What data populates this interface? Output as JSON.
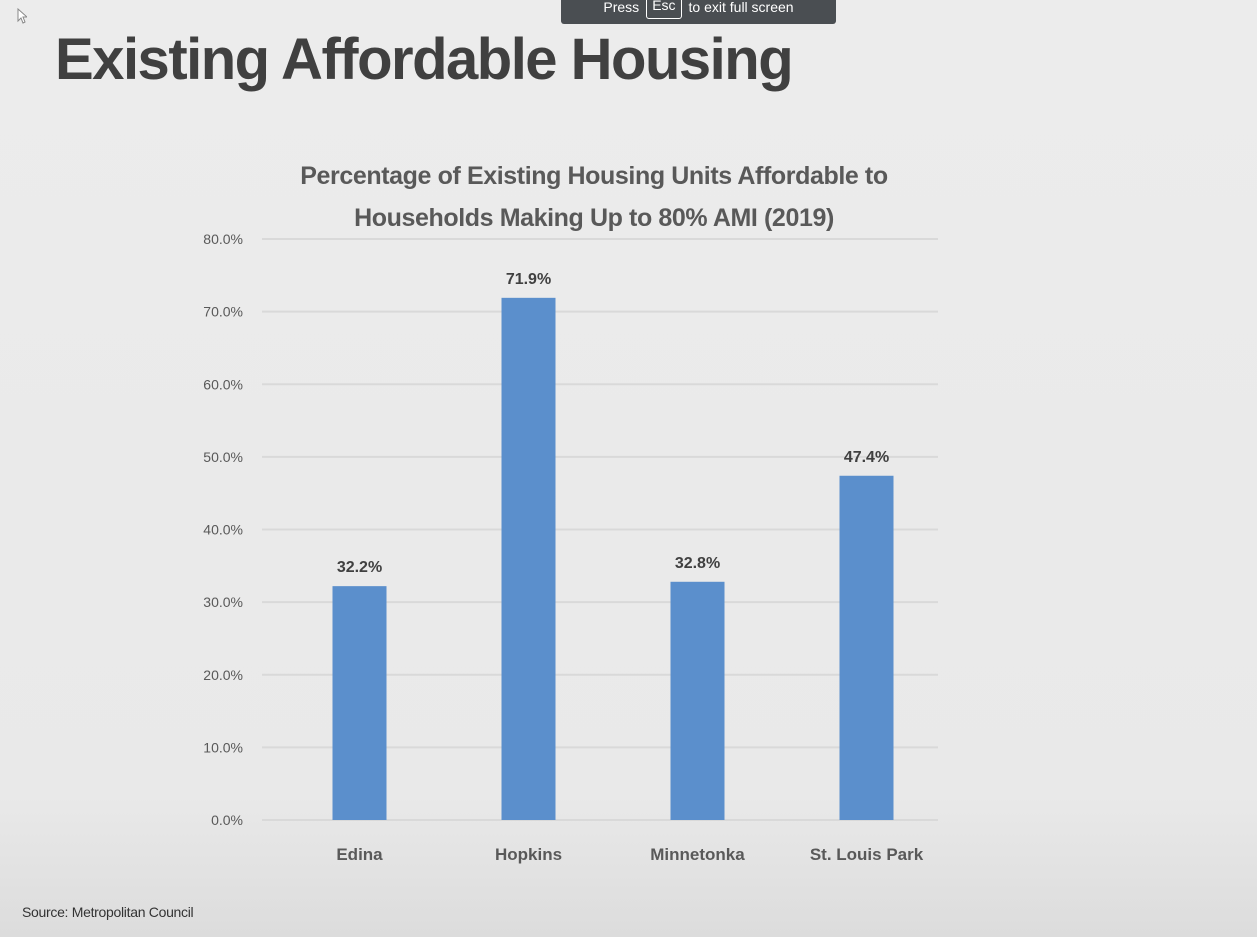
{
  "fullscreen_notice": {
    "prefix": "Press",
    "key": "Esc",
    "suffix": "to exit full screen"
  },
  "slide": {
    "title": "Existing Affordable Housing",
    "source": "Source: Metropolitan Council"
  },
  "colors": {
    "bar": "#5b8fcc",
    "gridline": "#d9d9d9",
    "axis_text": "#595959"
  },
  "icons": {
    "cursor": "mouse-pointer-icon"
  },
  "chart_data": {
    "type": "bar",
    "title_line1": "Percentage of Existing Housing Units Affordable to",
    "title_line2": "Households Making Up to 80% AMI (2019)",
    "categories": [
      "Edina",
      "Hopkins",
      "Minnetonka",
      "St. Louis Park"
    ],
    "values": [
      32.2,
      71.9,
      32.8,
      47.4
    ],
    "data_labels": [
      "32.2%",
      "71.9%",
      "32.8%",
      "47.4%"
    ],
    "ylim": [
      0,
      80
    ],
    "yticks": [
      0,
      10,
      20,
      30,
      40,
      50,
      60,
      70,
      80
    ],
    "ytick_labels": [
      "0.0%",
      "10.0%",
      "20.0%",
      "30.0%",
      "40.0%",
      "50.0%",
      "60.0%",
      "70.0%",
      "80.0%"
    ],
    "xlabel": "",
    "ylabel": "",
    "grid": true,
    "legend": "none"
  }
}
